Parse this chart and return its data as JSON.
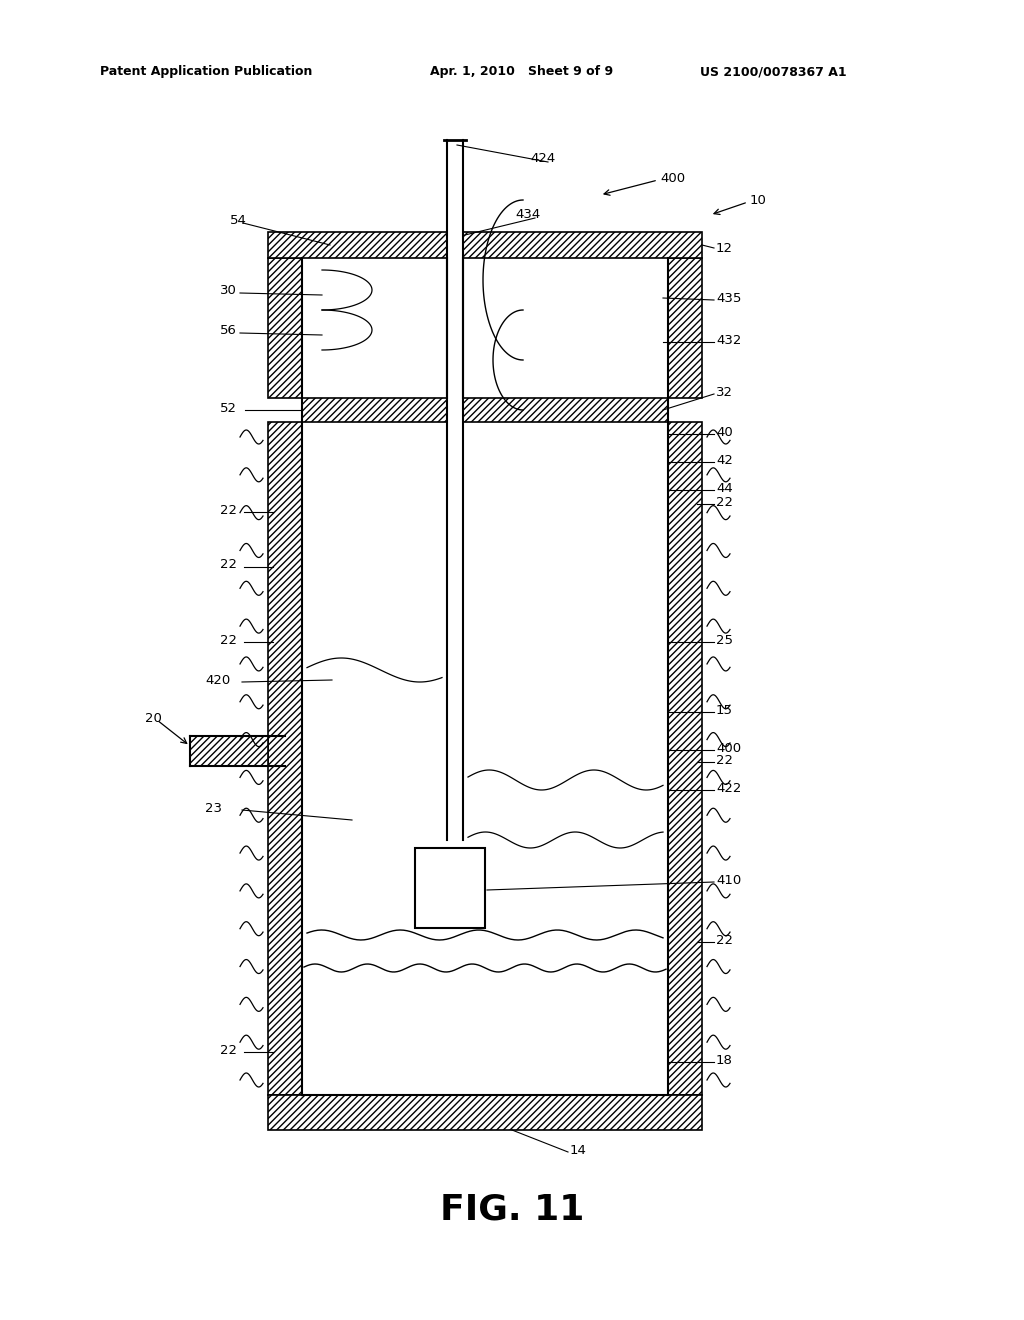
{
  "bg_color": "#ffffff",
  "lc": "#000000",
  "header": "Patent Application Publication    Apr. 1, 2010   Sheet 9 of 9          US 2100/0078367 A1",
  "header_left": "Patent Application Publication",
  "header_mid": "Apr. 1, 2010   Sheet 9 of 9",
  "header_right": "US 2100/0078367 A1",
  "fig_label": "FIG. 11"
}
